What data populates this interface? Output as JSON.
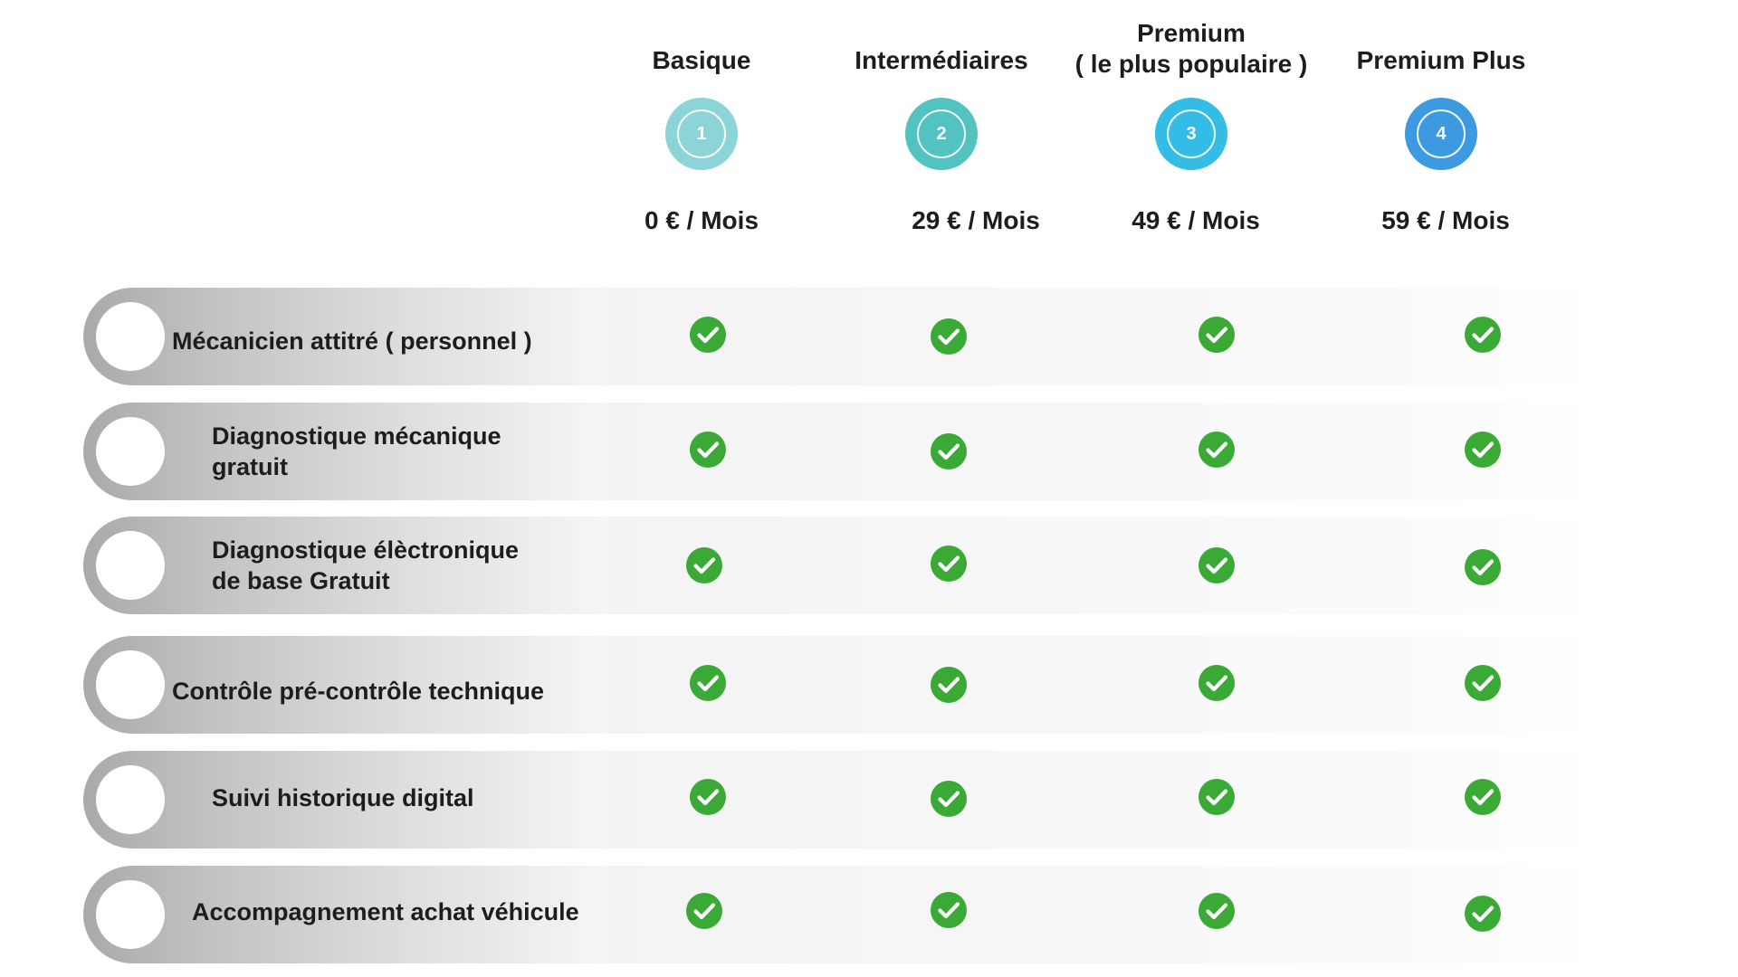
{
  "plans": [
    {
      "name_line1": "Basique",
      "name_line2": "",
      "number": "1",
      "price": "0 € / Mois",
      "color": "#8dd4d9"
    },
    {
      "name_line1": "Intermédiaires",
      "name_line2": "",
      "number": "2",
      "price": "29 € / Mois",
      "color": "#52c3c1"
    },
    {
      "name_line1": "Premium",
      "name_line2": "( le plus populaire )",
      "number": "3",
      "price": "49 € / Mois",
      "color": "#33bde6"
    },
    {
      "name_line1": "Premium Plus",
      "name_line2": "",
      "number": "4",
      "price": "59 € / Mois",
      "color": "#3e9ae0"
    }
  ],
  "features": [
    {
      "label_line1": "Mécanicien attitré ( personnel )",
      "label_line2": "",
      "included": [
        true,
        true,
        true,
        true
      ]
    },
    {
      "label_line1": "Diagnostique mécanique",
      "label_line2": "gratuit",
      "included": [
        true,
        true,
        true,
        true
      ]
    },
    {
      "label_line1": "Diagnostique élèctronique",
      "label_line2": "de base  Gratuit",
      "included": [
        true,
        true,
        true,
        true
      ]
    },
    {
      "label_line1": "Contrôle pré-contrôle technique",
      "label_line2": "",
      "included": [
        true,
        true,
        true,
        true
      ]
    },
    {
      "label_line1": "Suivi historique digital",
      "label_line2": "",
      "included": [
        true,
        true,
        true,
        true
      ]
    },
    {
      "label_line1": "Accompagnement achat véhicule",
      "label_line2": "",
      "included": [
        true,
        true,
        true,
        true
      ]
    }
  ],
  "colors": {
    "check_fill": "#3aa935",
    "check_mark": "#ffffff"
  },
  "icons": {
    "check": "check-circle-icon"
  }
}
